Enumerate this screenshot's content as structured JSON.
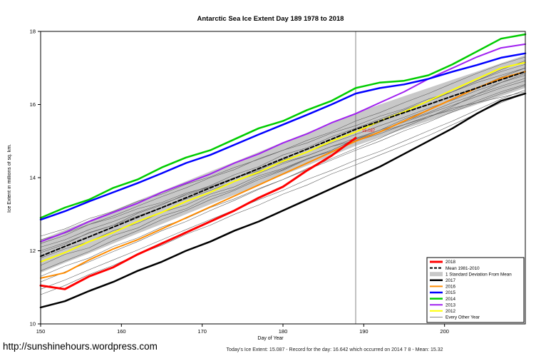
{
  "page": {
    "footer_link": "http://sunshinehours.wordpress.com"
  },
  "chart_data": {
    "type": "line",
    "title": "Antarctic Sea Ice Extent Day 189 1978 to 2018",
    "xlabel": "Day of Year",
    "ylabel": "Ice Extent in millions of sq. km.",
    "caption": "Today's Ice Extent: 15.087  - Record for the day: 16.642 which occurred on 2014 7 8  - Mean: 15.32",
    "xlim": [
      150,
      210
    ],
    "ylim": [
      10,
      18
    ],
    "x_ticks": [
      150,
      160,
      170,
      180,
      190,
      200
    ],
    "y_ticks": [
      10,
      12,
      14,
      16,
      18
    ],
    "grid": false,
    "legend_position": "bottom-right",
    "vline_x": 189,
    "annotation": {
      "text": "15.087",
      "x": 189.6,
      "y": 15.25,
      "color": "#ff0000"
    },
    "x": [
      150,
      153,
      156,
      159,
      162,
      165,
      168,
      171,
      174,
      177,
      180,
      183,
      186,
      189,
      192,
      195,
      198,
      201,
      204,
      207,
      210
    ],
    "band": {
      "name": "1 Standard Deviation From Mean",
      "color": "#c8c8c8",
      "upper": [
        12.3,
        12.57,
        12.83,
        13.1,
        13.37,
        13.63,
        13.9,
        14.17,
        14.43,
        14.7,
        14.97,
        15.23,
        15.5,
        15.77,
        16.0,
        16.23,
        16.45,
        16.68,
        16.9,
        17.13,
        17.35
      ],
      "lower": [
        11.4,
        11.67,
        11.93,
        12.2,
        12.47,
        12.73,
        13.0,
        13.27,
        13.53,
        13.8,
        14.07,
        14.33,
        14.6,
        14.87,
        15.1,
        15.33,
        15.55,
        15.78,
        16.0,
        16.23,
        16.45
      ]
    },
    "series": [
      {
        "name": "2012",
        "color": "#ffff00",
        "width": 2,
        "dash": "",
        "values": [
          11.7,
          11.95,
          12.25,
          12.5,
          12.8,
          13.05,
          13.35,
          13.6,
          13.9,
          14.15,
          14.45,
          14.7,
          15.0,
          15.25,
          15.55,
          15.8,
          16.1,
          16.4,
          16.7,
          17.0,
          17.15
        ]
      },
      {
        "name": "2013",
        "color": "#a020f0",
        "width": 2,
        "dash": "",
        "values": [
          12.25,
          12.5,
          12.8,
          13.05,
          13.3,
          13.6,
          13.85,
          14.1,
          14.4,
          14.65,
          14.95,
          15.2,
          15.5,
          15.75,
          16.05,
          16.35,
          16.7,
          17.0,
          17.3,
          17.55,
          17.65
        ]
      },
      {
        "name": "2014",
        "color": "#00cc00",
        "width": 2.5,
        "dash": "",
        "values": [
          12.9,
          13.18,
          13.4,
          13.72,
          13.95,
          14.28,
          14.55,
          14.75,
          15.05,
          15.35,
          15.55,
          15.85,
          16.1,
          16.45,
          16.6,
          16.65,
          16.8,
          17.1,
          17.45,
          17.8,
          17.92
        ]
      },
      {
        "name": "2015",
        "color": "#0000ff",
        "width": 2.5,
        "dash": "",
        "values": [
          12.85,
          13.08,
          13.35,
          13.6,
          13.85,
          14.12,
          14.4,
          14.62,
          14.9,
          15.18,
          15.45,
          15.72,
          16.0,
          16.3,
          16.45,
          16.55,
          16.7,
          16.9,
          17.08,
          17.28,
          17.4
        ]
      },
      {
        "name": "2016",
        "color": "#ff8c00",
        "width": 2,
        "dash": "",
        "values": [
          11.25,
          11.4,
          11.75,
          12.05,
          12.3,
          12.6,
          12.9,
          13.2,
          13.5,
          13.8,
          14.1,
          14.4,
          14.7,
          15.0,
          15.25,
          15.55,
          15.85,
          16.15,
          16.45,
          16.72,
          16.9
        ]
      },
      {
        "name": "2017",
        "color": "#000000",
        "width": 2.5,
        "dash": "",
        "values": [
          10.45,
          10.62,
          10.9,
          11.15,
          11.45,
          11.7,
          12.0,
          12.25,
          12.55,
          12.8,
          13.1,
          13.4,
          13.7,
          14.0,
          14.3,
          14.65,
          15.0,
          15.35,
          15.75,
          16.1,
          16.3
        ]
      },
      {
        "name": "Mean 1981-2010",
        "color": "#000000",
        "width": 2,
        "dash": "5,3",
        "values": [
          11.85,
          12.12,
          12.38,
          12.65,
          12.92,
          13.18,
          13.45,
          13.72,
          13.98,
          14.25,
          14.52,
          14.78,
          15.05,
          15.32,
          15.55,
          15.78,
          16.0,
          16.23,
          16.45,
          16.68,
          16.9
        ]
      },
      {
        "name": "2018",
        "color": "#ff0000",
        "width": 3,
        "dash": "",
        "values": [
          11.05,
          10.95,
          11.3,
          11.55,
          11.9,
          12.2,
          12.5,
          12.8,
          13.1,
          13.45,
          13.75,
          14.2,
          14.6,
          15.087,
          null,
          null,
          null,
          null,
          null,
          null,
          null
        ]
      }
    ],
    "background_series": {
      "name": "Every Other Year",
      "color": "#606060",
      "width": 0.6,
      "lines": [
        [
          11.95,
          12.18,
          12.5,
          12.7,
          13.02,
          13.25,
          13.55,
          13.78,
          14.08,
          14.3,
          14.62,
          14.82,
          15.12,
          15.35,
          15.6,
          15.85,
          16.1,
          16.35,
          16.65,
          16.9,
          17.1
        ],
        [
          11.6,
          11.9,
          12.08,
          12.42,
          12.62,
          12.95,
          13.15,
          13.48,
          13.68,
          14.0,
          14.22,
          14.52,
          14.75,
          15.05,
          15.25,
          15.55,
          15.78,
          16.05,
          16.28,
          16.5,
          16.72
        ],
        [
          12.4,
          12.6,
          12.88,
          13.08,
          13.35,
          13.55,
          13.82,
          14.02,
          14.28,
          14.5,
          14.75,
          14.95,
          15.22,
          15.42,
          15.68,
          15.88,
          16.15,
          16.35,
          16.6,
          16.8,
          17.0
        ],
        [
          11.3,
          11.58,
          11.8,
          12.12,
          12.35,
          12.65,
          12.88,
          13.18,
          13.42,
          13.7,
          13.95,
          14.22,
          14.48,
          14.75,
          15.0,
          15.28,
          15.52,
          15.8,
          16.05,
          16.3,
          16.52
        ],
        [
          12.1,
          12.3,
          12.58,
          12.8,
          13.05,
          13.28,
          13.52,
          13.75,
          14.0,
          14.22,
          14.48,
          14.7,
          14.95,
          15.18,
          15.42,
          15.65,
          15.9,
          16.12,
          16.38,
          16.6,
          16.8
        ],
        [
          11.8,
          12.05,
          12.25,
          12.55,
          12.75,
          13.05,
          13.25,
          13.55,
          13.75,
          14.05,
          14.25,
          14.52,
          14.72,
          15.0,
          15.2,
          15.45,
          15.65,
          15.9,
          16.05,
          16.2,
          16.35
        ],
        [
          12.2,
          12.42,
          12.72,
          12.95,
          13.22,
          13.48,
          13.72,
          14.0,
          14.22,
          14.52,
          14.75,
          15.02,
          15.25,
          15.55,
          15.78,
          16.05,
          16.3,
          16.58,
          16.85,
          17.1,
          17.3
        ],
        [
          11.45,
          11.72,
          11.98,
          12.28,
          12.55,
          12.85,
          13.1,
          13.4,
          13.65,
          13.95,
          14.2,
          14.5,
          14.75,
          15.05,
          15.3,
          15.6,
          15.85,
          16.15,
          16.45,
          16.75,
          17.0
        ],
        [
          10.8,
          11.05,
          11.35,
          11.6,
          11.9,
          12.15,
          12.45,
          12.7,
          13.0,
          13.25,
          13.55,
          13.8,
          14.1,
          14.35,
          14.62,
          14.88,
          15.15,
          15.45,
          15.75,
          16.05,
          16.3
        ],
        [
          12.0,
          12.22,
          12.48,
          12.7,
          12.95,
          13.18,
          13.42,
          13.65,
          13.9,
          14.12,
          14.38,
          14.6,
          14.85,
          15.08,
          15.3,
          15.52,
          15.75,
          15.98,
          16.22,
          16.45,
          16.65
        ],
        [
          11.15,
          11.42,
          11.7,
          11.98,
          12.25,
          12.55,
          12.8,
          13.1,
          13.38,
          13.68,
          13.95,
          14.25,
          14.52,
          14.8,
          15.08,
          15.38,
          15.65,
          15.95,
          16.28,
          16.6,
          16.85
        ],
        [
          11.7,
          11.95,
          12.25,
          12.5,
          12.8,
          13.05,
          13.35,
          13.6,
          13.9,
          14.15,
          14.45,
          14.7,
          15.0,
          15.25,
          15.52,
          15.8,
          16.08,
          16.35,
          16.65,
          16.95,
          17.2
        ],
        [
          12.3,
          12.48,
          12.72,
          12.9,
          13.15,
          13.32,
          13.58,
          13.75,
          14.0,
          14.18,
          14.42,
          14.6,
          14.85,
          15.02,
          15.25,
          15.45,
          15.68,
          15.85,
          16.1,
          16.35,
          16.55
        ],
        [
          10.95,
          11.2,
          11.48,
          11.75,
          12.02,
          12.3,
          12.58,
          12.85,
          13.12,
          13.4,
          13.65,
          13.95,
          14.2,
          14.48,
          14.72,
          15.0,
          15.28,
          15.55,
          15.85,
          16.15,
          16.4
        ]
      ]
    },
    "legend": [
      {
        "label": "2018",
        "swatch": "line",
        "color": "#ff0000",
        "width": 3,
        "dash": ""
      },
      {
        "label": "Mean 1981-2010",
        "swatch": "line",
        "color": "#000000",
        "width": 2,
        "dash": "4,2"
      },
      {
        "label": "1 Standard Deviation From Mean",
        "swatch": "fill",
        "color": "#c8c8c8",
        "width": 0,
        "dash": ""
      },
      {
        "label": "2017",
        "swatch": "line",
        "color": "#000000",
        "width": 2.5,
        "dash": ""
      },
      {
        "label": "2016",
        "swatch": "line",
        "color": "#ff8c00",
        "width": 2,
        "dash": ""
      },
      {
        "label": "2015",
        "swatch": "line",
        "color": "#0000ff",
        "width": 2.5,
        "dash": ""
      },
      {
        "label": "2014",
        "swatch": "line",
        "color": "#00cc00",
        "width": 2.5,
        "dash": ""
      },
      {
        "label": "2013",
        "swatch": "line",
        "color": "#a020f0",
        "width": 2,
        "dash": ""
      },
      {
        "label": "2012",
        "swatch": "line",
        "color": "#ffff00",
        "width": 2,
        "dash": ""
      },
      {
        "label": "Every Other Year",
        "swatch": "line",
        "color": "#606060",
        "width": 0.8,
        "dash": ""
      }
    ]
  }
}
